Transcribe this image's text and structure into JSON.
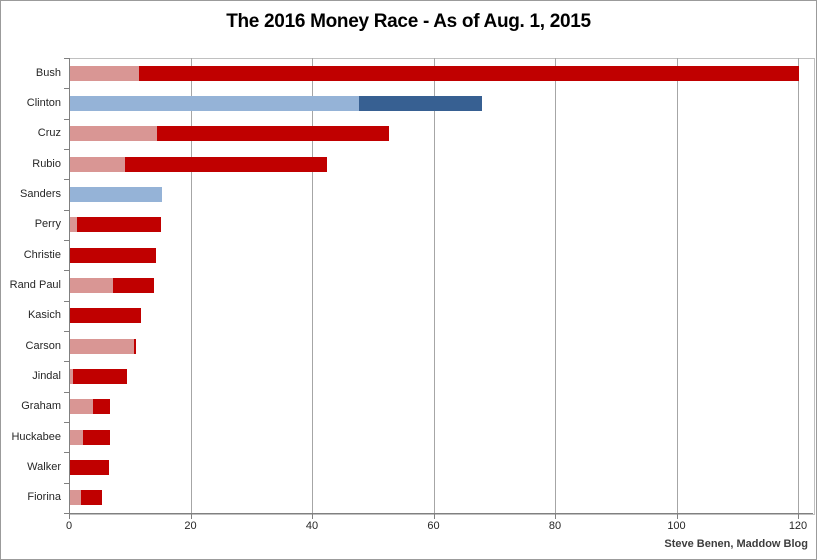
{
  "title": "The 2016 Money Race - As of Aug. 1, 2015",
  "source": "Steve Benen, Maddow Blog",
  "chart_data": {
    "type": "bar",
    "orientation": "horizontal",
    "stacked": true,
    "title": "The 2016 Money Race - As of Aug. 1, 2015",
    "categories": [
      "Bush",
      "Clinton",
      "Cruz",
      "Rubio",
      "Sanders",
      "Perry",
      "Christie",
      "Rand Paul",
      "Kasich",
      "Carson",
      "Jindal",
      "Graham",
      "Huckabee",
      "Walker",
      "Fiorina"
    ],
    "party": [
      "R",
      "D",
      "R",
      "R",
      "D",
      "R",
      "R",
      "R",
      "R",
      "R",
      "R",
      "R",
      "R",
      "R",
      "R"
    ],
    "series": [
      {
        "name": "light-segment",
        "values": [
          11.4,
          47.5,
          14.3,
          9.0,
          15.2,
          1.1,
          0,
          7.0,
          0,
          10.5,
          0.5,
          3.8,
          2.1,
          0,
          1.8
        ]
      },
      {
        "name": "dark-segment",
        "values": [
          108.6,
          20.3,
          38.2,
          33.3,
          0,
          13.9,
          14.1,
          6.9,
          11.7,
          0.4,
          8.9,
          2.8,
          4.5,
          6.4,
          3.4
        ]
      }
    ],
    "xlabel": "",
    "ylabel": "",
    "xlim": [
      0,
      122.5
    ],
    "x_ticks": [
      0,
      20,
      40,
      60,
      80,
      100,
      120
    ],
    "grid": true,
    "legend": "none",
    "annotation": "Steve Benen, Maddow Blog",
    "colors": {
      "rep_light": "#D99694",
      "rep_dark": "#C00000",
      "dem_light": "#95B3D7",
      "dem_dark": "#376092",
      "gridline": "#A6A6A6",
      "axis": "#808080"
    }
  }
}
